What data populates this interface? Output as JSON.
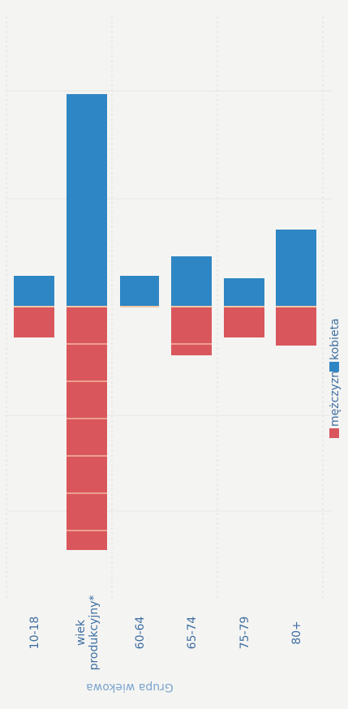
{
  "chart_data": {
    "type": "bar",
    "orientation": "rotated",
    "stacked": "diverging",
    "ylabel": "Grupa wiekowa",
    "categories": [
      "10-18",
      "wiek\nprodukcyjny*",
      "60-64",
      "65-74",
      "75-79",
      "80+"
    ],
    "series": [
      {
        "name": "mężczyzna",
        "color": "#d9575c",
        "values": [
          38,
          300,
          0,
          60,
          38,
          48
        ]
      },
      {
        "name": "kobieta",
        "color": "#2f86c4",
        "values": [
          38,
          262,
          38,
          62,
          35,
          95
        ]
      }
    ],
    "grid": true,
    "legend": "bottom"
  }
}
